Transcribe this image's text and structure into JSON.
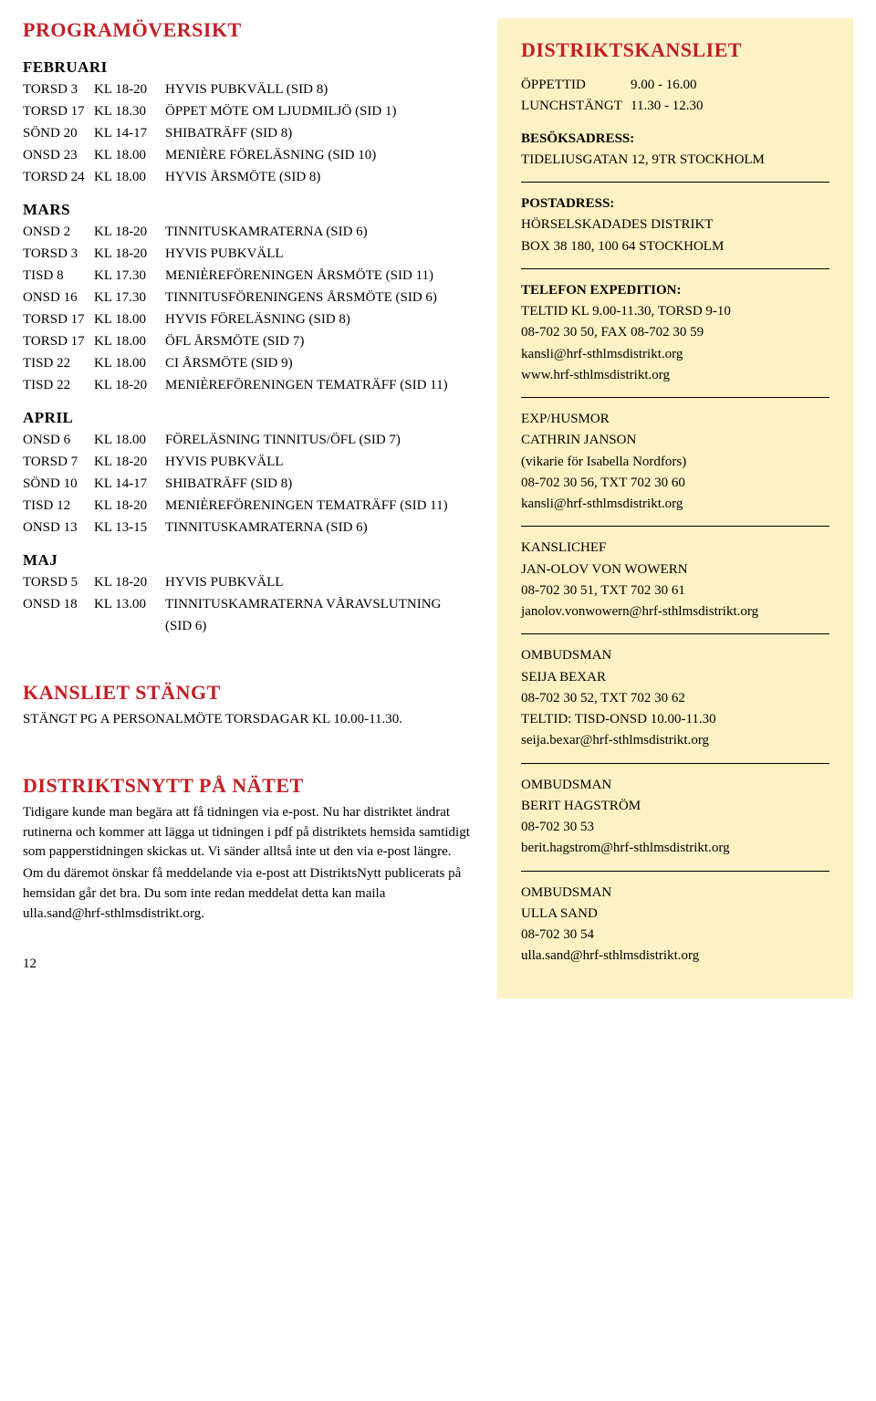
{
  "left": {
    "title": "PROGRAMÖVERSIKT",
    "months": [
      {
        "name": "FEBRUARI",
        "events": [
          {
            "day": "TORSD 3",
            "time": "KL 18-20",
            "desc": "HYVIS PUBKVÄLL (SID 8)"
          },
          {
            "day": "TORSD 17",
            "time": "KL 18.30",
            "desc": "ÖPPET MÖTE OM LJUDMILJÖ (SID 1)"
          },
          {
            "day": "SÖND 20",
            "time": "KL 14-17",
            "desc": "SHIBATRÄFF (SID 8)"
          },
          {
            "day": "ONSD 23",
            "time": "KL 18.00",
            "desc": "MENIÈRE FÖRELÄSNING (SID 10)"
          },
          {
            "day": "TORSD 24",
            "time": "KL 18.00",
            "desc": "HYVIS ÅRSMÖTE (SID 8)"
          }
        ]
      },
      {
        "name": "MARS",
        "events": [
          {
            "day": "ONSD 2",
            "time": "KL 18-20",
            "desc": "TINNITUSKAMRATERNA (SID 6)"
          },
          {
            "day": "TORSD 3",
            "time": "KL 18-20",
            "desc": "HYVIS PUBKVÄLL"
          },
          {
            "day": "TISD 8",
            "time": "KL 17.30",
            "desc": "MENIÈREFÖRENINGEN ÅRSMÖTE (SID 11)"
          },
          {
            "day": "ONSD 16",
            "time": "KL 17.30",
            "desc": "TINNITUSFÖRENINGENS ÅRSMÖTE (SID 6)"
          },
          {
            "day": "TORSD 17",
            "time": "KL 18.00",
            "desc": "HYVIS FÖRELÄSNING (SID 8)"
          },
          {
            "day": "TORSD 17",
            "time": "KL 18.00",
            "desc": "ÖFL ÅRSMÖTE (SID 7)"
          },
          {
            "day": "TISD 22",
            "time": "KL 18.00",
            "desc": "CI ÅRSMÖTE (SID 9)"
          },
          {
            "day": "TISD 22",
            "time": "KL 18-20",
            "desc": "MENIÈREFÖRENINGEN TEMATRÄFF (SID 11)"
          }
        ]
      },
      {
        "name": "APRIL",
        "events": [
          {
            "day": "ONSD 6",
            "time": "KL 18.00",
            "desc": "FÖRELÄSNING TINNITUS/ÖFL (SID 7)"
          },
          {
            "day": "TORSD 7",
            "time": "KL 18-20",
            "desc": "HYVIS PUBKVÄLL"
          },
          {
            "day": "SÖND 10",
            "time": "KL 14-17",
            "desc": "SHIBATRÄFF (SID 8)"
          },
          {
            "day": "TISD 12",
            "time": "KL 18-20",
            "desc": "MENIÈREFÖRENINGEN TEMATRÄFF (SID 11)"
          },
          {
            "day": "ONSD 13",
            "time": "KL 13-15",
            "desc": "TINNITUSKAMRATERNA (SID 6)"
          }
        ]
      },
      {
        "name": "MAJ",
        "events": [
          {
            "day": "TORSD 5",
            "time": "KL 18-20",
            "desc": "HYVIS PUBKVÄLL"
          },
          {
            "day": "ONSD 18",
            "time": "KL 13.00",
            "desc": "TINNITUSKAMRATERNA VÅRAVSLUTNING (SID 6)"
          }
        ]
      }
    ],
    "closed_title": "KANSLIET STÄNGT",
    "closed_text": "STÄNGT PG A PERSONALMÖTE TORSDAGAR KL 10.00-11.30.",
    "net_title": "DISTRIKTSNYTT PÅ NÄTET",
    "net_text1": "Tidigare kunde man begära att få tidningen via e-post. Nu har distriktet ändrat rutinerna och kommer att lägga ut tidningen i pdf på distriktets hemsida samtidigt som papperstidningen skickas ut. Vi sänder alltså inte ut den via e-post längre.",
    "net_text2": "Om du däremot önskar få meddelande via e-post att DistriktsNytt publicerats på hemsidan går det bra. Du som inte redan meddelat detta kan maila ulla.sand@hrf-sthlmsdistrikt.org.",
    "page_number": "12"
  },
  "right": {
    "title": "DISTRIKTSKANSLIET",
    "hours": {
      "open_label": "ÖPPETTID",
      "open_val": "9.00 - 16.00",
      "lunch_label": "LUNCHSTÄNGT",
      "lunch_val": "11.30 - 12.30"
    },
    "visit": {
      "label": "BESÖKSADRESS:",
      "line1": "TIDELIUSGATAN 12, 9TR STOCKHOLM"
    },
    "postal": {
      "label": "POSTADRESS:",
      "line1": "HÖRSELSKADADES DISTRIKT",
      "line2": "BOX 38 180, 100 64 STOCKHOLM"
    },
    "phone": {
      "label": "TELEFON EXPEDITION:",
      "line1": "TELTID KL 9.00-11.30, TORSD 9-10",
      "line2": "08-702 30 50, FAX 08-702 30 59",
      "line3": "kansli@hrf-sthlmsdistrikt.org",
      "line4": "www.hrf-sthlmsdistrikt.org"
    },
    "husmor": {
      "label": "EXP/HUSMOR",
      "line1": "CATHRIN JANSON",
      "line2": "(vikarie för Isabella Nordfors)",
      "line3": "08-702 30 56, TXT 702 30 60",
      "line4": "kansli@hrf-sthlmsdistrikt.org"
    },
    "chef": {
      "label": "KANSLICHEF",
      "line1": "JAN-OLOV VON WOWERN",
      "line2": "08-702 30 51, TXT 702 30 61",
      "line3": "janolov.vonwowern@hrf-sthlmsdistrikt.org"
    },
    "omb1": {
      "label": "OMBUDSMAN",
      "line1": "SEIJA BEXAR",
      "line2": "08-702 30 52, TXT 702 30 62",
      "line3": "TELTID: TISD-ONSD 10.00-11.30",
      "line4": "seija.bexar@hrf-sthlmsdistrikt.org"
    },
    "omb2": {
      "label": "OMBUDSMAN",
      "line1": "BERIT HAGSTRÖM",
      "line2": "08-702 30 53",
      "line3": "berit.hagstrom@hrf-sthlmsdistrikt.org"
    },
    "omb3": {
      "label": "OMBUDSMAN",
      "line1": "ULLA SAND",
      "line2": "08-702 30 54",
      "line3": "ulla.sand@hrf-sthlmsdistrikt.org"
    }
  },
  "colors": {
    "heading": "#c41e25",
    "sidebar_bg": "#fdf2c4",
    "text": "#000000",
    "rule": "#000000"
  }
}
